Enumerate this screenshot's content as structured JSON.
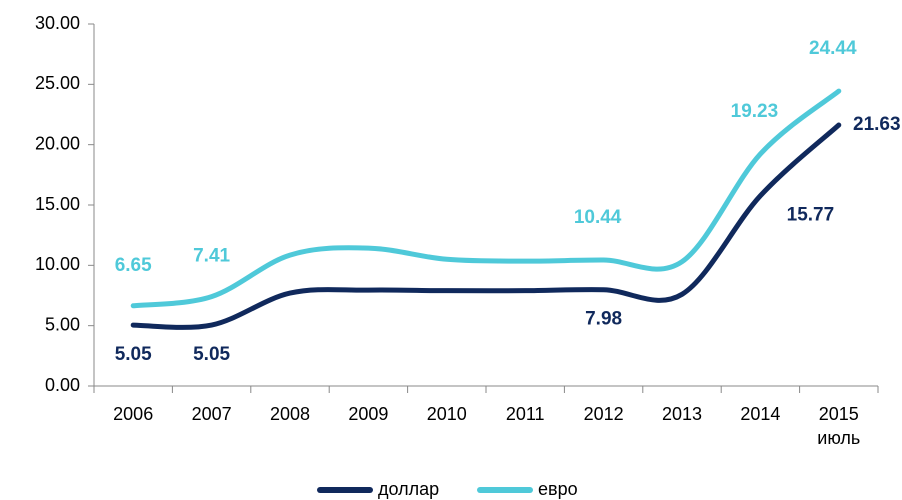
{
  "chart_data": {
    "type": "line",
    "categories": [
      "2006",
      "2007",
      "2008",
      "2009",
      "2010",
      "2011",
      "2012",
      "2013",
      "2014",
      "2015\nиюль"
    ],
    "series": [
      {
        "name": "доллар",
        "color": "#10295c",
        "values": [
          5.05,
          5.05,
          7.7,
          7.95,
          7.9,
          7.9,
          7.98,
          7.6,
          15.77,
          21.63
        ],
        "value_labels": [
          "5.05",
          "5.05",
          null,
          null,
          null,
          null,
          "7.98",
          null,
          "15.77",
          "21.63"
        ]
      },
      {
        "name": "евро",
        "color": "#4fc9d9",
        "values": [
          6.65,
          7.41,
          10.85,
          11.43,
          10.5,
          10.35,
          10.44,
          10.3,
          19.23,
          24.44
        ],
        "value_labels": [
          "6.65",
          "7.41",
          null,
          null,
          null,
          null,
          "10.44",
          null,
          "19.23",
          "24.44"
        ]
      }
    ],
    "ylim": [
      0,
      30
    ],
    "yticks": [
      {
        "value": 0,
        "label": "0.00"
      },
      {
        "value": 5,
        "label": "5.00"
      },
      {
        "value": 10,
        "label": "10.00"
      },
      {
        "value": 15,
        "label": "15.00"
      },
      {
        "value": 20,
        "label": "20.00"
      },
      {
        "value": 25,
        "label": "25.00"
      },
      {
        "value": 30,
        "label": "30.00"
      }
    ],
    "legend": "bottom"
  }
}
